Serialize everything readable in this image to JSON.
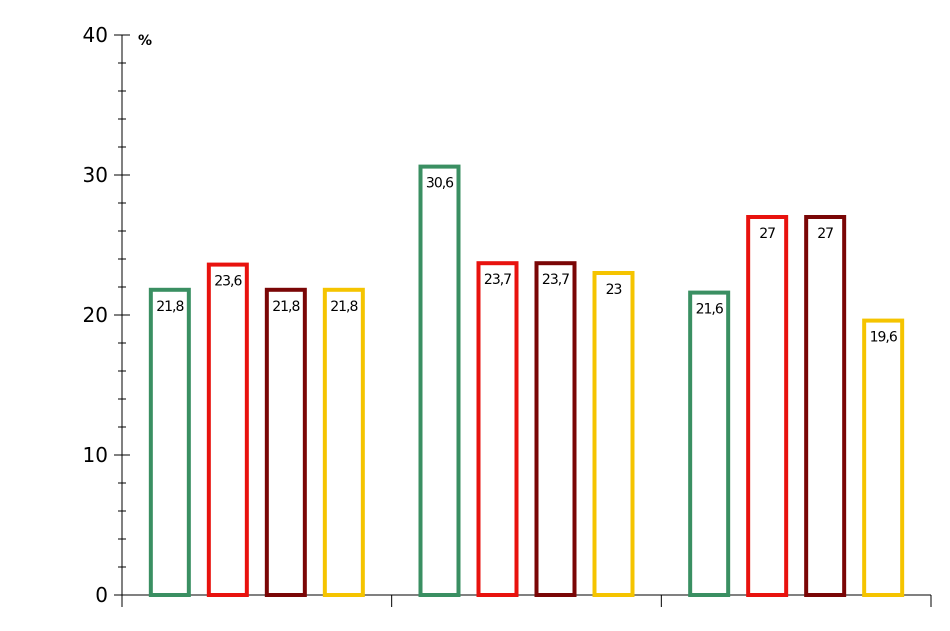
{
  "chart_data": {
    "type": "bar",
    "title": "",
    "xlabel": "",
    "ylabel": "",
    "unit": "%",
    "ylim": [
      0,
      40
    ],
    "y_ticks": [
      0,
      10,
      20,
      30,
      40
    ],
    "grid": false,
    "legend": "none",
    "categories": [
      "",
      "",
      ""
    ],
    "series": [
      {
        "color": "#3a8f62",
        "values": [
          21.8,
          30.6,
          21.6
        ],
        "labels": [
          "21,8",
          "30,6",
          "21,6"
        ]
      },
      {
        "color": "#e8120e",
        "values": [
          23.6,
          23.7,
          27
        ],
        "labels": [
          "23,6",
          "23,7",
          "27"
        ]
      },
      {
        "color": "#7a0606",
        "values": [
          21.8,
          23.7,
          27
        ],
        "labels": [
          "21,8",
          "23,7",
          "27"
        ]
      },
      {
        "color": "#f5c400",
        "values": [
          21.8,
          23,
          19.6
        ],
        "labels": [
          "21,8",
          "23",
          "19,6"
        ]
      }
    ]
  }
}
